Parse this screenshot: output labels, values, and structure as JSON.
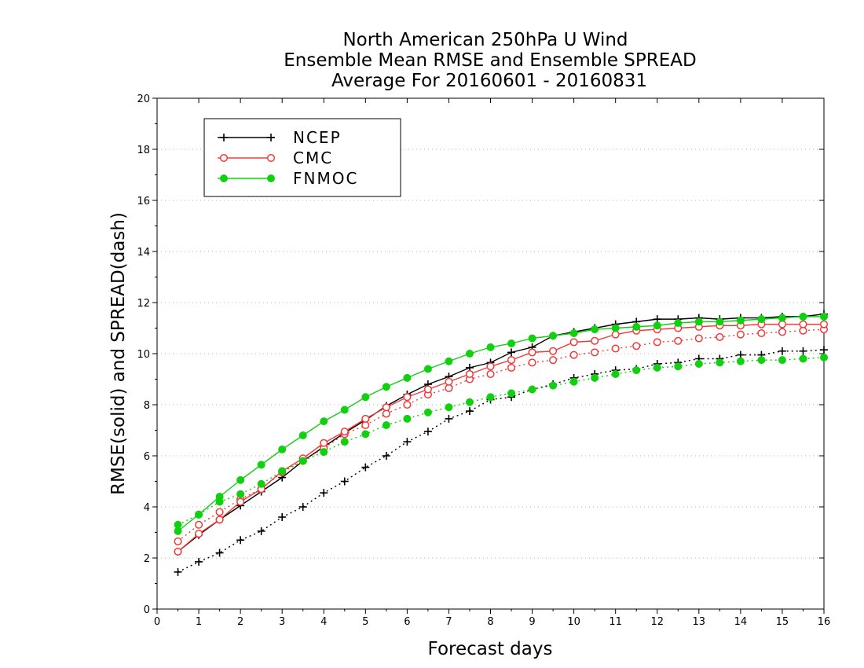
{
  "chart_data": {
    "type": "line",
    "title": [
      "North American 250hPa U Wind",
      "Ensemble Mean RMSE and Ensemble SPREAD",
      "Average For 20160601 - 20160831"
    ],
    "xlabel": "Forecast days",
    "ylabel": "RMSE(solid) and SPREAD(dash)",
    "xlim": [
      0,
      16
    ],
    "ylim": [
      0,
      20
    ],
    "xticks": [
      0,
      1,
      2,
      3,
      4,
      5,
      6,
      7,
      8,
      9,
      10,
      11,
      12,
      13,
      14,
      15,
      16
    ],
    "yticks": [
      0,
      2,
      4,
      6,
      8,
      10,
      12,
      14,
      16,
      18,
      20
    ],
    "grid": "horizontal dotted",
    "legend_position": "top-left",
    "x": [
      0.5,
      1,
      1.5,
      2,
      2.5,
      3,
      3.5,
      4,
      4.5,
      5,
      5.5,
      6,
      6.5,
      7,
      7.5,
      8,
      8.5,
      9,
      9.5,
      10,
      10.5,
      11,
      11.5,
      12,
      12.5,
      13,
      13.5,
      14,
      14.5,
      15,
      15.5,
      16
    ],
    "series": [
      {
        "name": "NCEP",
        "color": "#000000",
        "marker": "plus",
        "rmse": [
          2.25,
          2.9,
          3.5,
          4.05,
          4.6,
          5.15,
          5.8,
          6.35,
          6.9,
          7.4,
          7.95,
          8.4,
          8.8,
          9.1,
          9.45,
          9.65,
          10.05,
          10.25,
          10.7,
          10.85,
          11.0,
          11.15,
          11.25,
          11.35,
          11.35,
          11.4,
          11.35,
          11.4,
          11.4,
          11.45,
          11.45,
          11.55
        ],
        "spread": [
          1.45,
          1.85,
          2.2,
          2.7,
          3.05,
          3.6,
          4.0,
          4.55,
          5.0,
          5.55,
          6.0,
          6.55,
          6.95,
          7.45,
          7.75,
          8.2,
          8.3,
          8.6,
          8.8,
          9.05,
          9.2,
          9.35,
          9.4,
          9.6,
          9.65,
          9.8,
          9.8,
          9.95,
          9.95,
          10.1,
          10.1,
          10.15
        ]
      },
      {
        "name": "CMC",
        "color": "#f03c3c",
        "marker": "open-circle",
        "rmse": [
          2.25,
          2.95,
          3.5,
          4.2,
          4.7,
          5.4,
          5.9,
          6.5,
          6.95,
          7.45,
          7.9,
          8.3,
          8.6,
          8.9,
          9.2,
          9.5,
          9.75,
          10.05,
          10.1,
          10.45,
          10.5,
          10.75,
          10.9,
          10.95,
          11.0,
          11.05,
          11.1,
          11.1,
          11.15,
          11.15,
          11.15,
          11.15
        ],
        "spread": [
          2.65,
          3.3,
          3.8,
          4.3,
          4.7,
          5.35,
          5.8,
          6.3,
          6.85,
          7.2,
          7.65,
          8.0,
          8.4,
          8.65,
          9.0,
          9.2,
          9.45,
          9.65,
          9.75,
          9.95,
          10.05,
          10.2,
          10.3,
          10.45,
          10.5,
          10.6,
          10.65,
          10.75,
          10.8,
          10.85,
          10.9,
          10.95
        ]
      },
      {
        "name": "FNMOC",
        "color": "#10d010",
        "marker": "filled-circle",
        "rmse": [
          3.05,
          3.7,
          4.4,
          5.05,
          5.65,
          6.25,
          6.8,
          7.35,
          7.8,
          8.3,
          8.7,
          9.05,
          9.4,
          9.7,
          10.0,
          10.25,
          10.4,
          10.6,
          10.7,
          10.8,
          10.95,
          11.0,
          11.05,
          11.1,
          11.2,
          11.25,
          11.25,
          11.3,
          11.35,
          11.4,
          11.45,
          11.45
        ],
        "spread": [
          3.3,
          3.7,
          4.2,
          4.5,
          4.9,
          5.4,
          5.8,
          6.15,
          6.55,
          6.85,
          7.2,
          7.45,
          7.7,
          7.9,
          8.1,
          8.3,
          8.45,
          8.6,
          8.75,
          8.9,
          9.05,
          9.2,
          9.35,
          9.45,
          9.5,
          9.6,
          9.65,
          9.7,
          9.75,
          9.75,
          9.8,
          9.85
        ]
      }
    ]
  }
}
